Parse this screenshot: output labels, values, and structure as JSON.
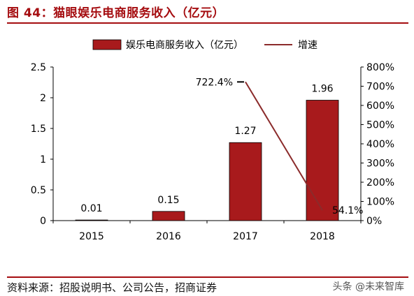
{
  "figure": {
    "title": "图 44：猫眼娱乐电商服务收入（亿元）",
    "source": "资料来源：招股说明书、公司公告，招商证券",
    "watermark": "头条 @未来智库"
  },
  "colors": {
    "accent": "#a50d10",
    "bar": "#a81a1c",
    "line": "#8b2b2b"
  },
  "chart_data": {
    "type": "bar",
    "categories": [
      "2015",
      "2016",
      "2017",
      "2018"
    ],
    "series": [
      {
        "name": "娱乐电商服务收入（亿元）",
        "type": "bar",
        "axis": "left",
        "values": [
          0.01,
          0.15,
          1.27,
          1.96
        ],
        "labels": [
          "0.01",
          "0.15",
          "1.27",
          "1.96"
        ]
      },
      {
        "name": "增速",
        "type": "line",
        "axis": "right",
        "x": [
          "2017",
          "2018"
        ],
        "values": [
          722.4,
          54.1
        ],
        "labels": [
          "722.4%",
          "54.1%"
        ]
      }
    ],
    "y_left": {
      "ylim": [
        0,
        2.5
      ],
      "ticks": [
        "0",
        "0.5",
        "1",
        "1.5",
        "2",
        "2.5"
      ]
    },
    "y_right": {
      "ylim": [
        0,
        800
      ],
      "ticks": [
        "0%",
        "100%",
        "200%",
        "300%",
        "400%",
        "500%",
        "600%",
        "700%",
        "800%"
      ]
    },
    "legend_position": "top-center",
    "grid": false
  }
}
